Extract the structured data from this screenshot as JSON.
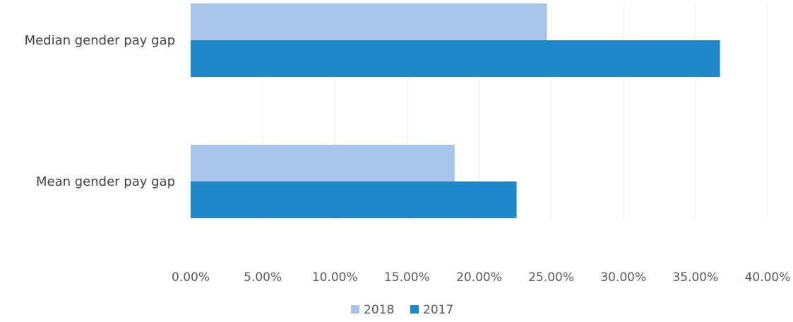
{
  "chart_data": {
    "type": "bar",
    "orientation": "horizontal",
    "categories": [
      "Median gender pay gap",
      "Mean gender pay gap"
    ],
    "series": [
      {
        "name": "2018",
        "values": [
          0.247,
          0.183
        ],
        "color": "#a9c4eb"
      },
      {
        "name": "2017",
        "values": [
          0.367,
          0.226
        ],
        "color": "#1e88c8"
      }
    ],
    "xlim": [
      0,
      0.4
    ],
    "xticks": [
      0,
      0.05,
      0.1,
      0.15,
      0.2,
      0.25,
      0.3,
      0.35,
      0.4
    ],
    "xtick_labels": [
      "0.00%",
      "5.00%",
      "10.00%",
      "15.00%",
      "20.00%",
      "25.00%",
      "30.00%",
      "35.00%",
      "40.00%"
    ],
    "grid": true,
    "legend_position": "bottom",
    "title": "",
    "xlabel": "",
    "ylabel": ""
  }
}
